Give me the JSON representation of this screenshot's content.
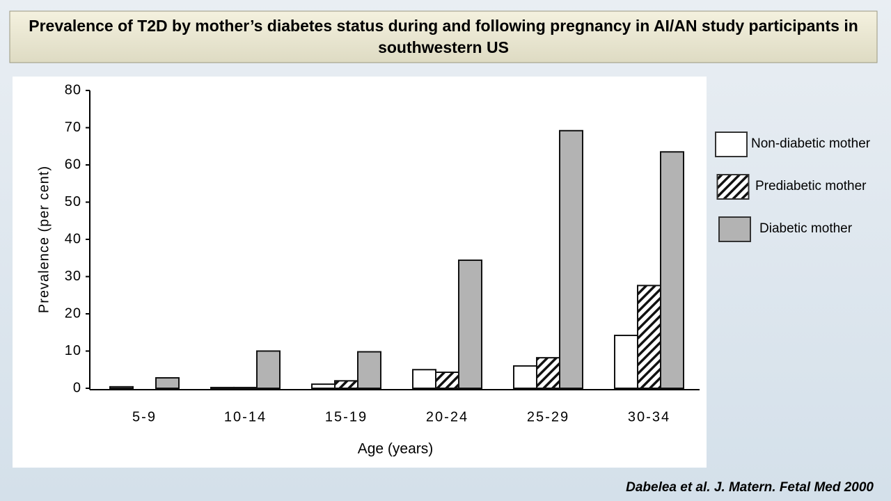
{
  "chart_data": {
    "type": "bar",
    "title": "Prevalence of T2D by mother’s diabetes status during and following pregnancy in AI/AN study participants in southwestern US",
    "ylabel": "Prevalence (per cent)",
    "xlabel": "Age (years)",
    "categories": [
      "5-9",
      "10-14",
      "15-19",
      "20-24",
      "25-29",
      "30-34"
    ],
    "series": [
      {
        "name": "Non-diabetic mother",
        "color": "#ffffff",
        "values": [
          0.4,
          0.2,
          1.1,
          5,
          6,
          14.2
        ]
      },
      {
        "name": "Prediabetic mother",
        "color": "#ffffff",
        "pattern": "hatch",
        "values": [
          0,
          0.2,
          2,
          4.3,
          8.2,
          27.6
        ]
      },
      {
        "name": "Diabetic mother",
        "color": "#b3b3b3",
        "values": [
          2.8,
          10,
          9.8,
          34.4,
          69.2,
          63.5
        ]
      }
    ],
    "ylim": [
      0,
      80
    ],
    "yticks": [
      0,
      10,
      20,
      30,
      40,
      50,
      60,
      70,
      80
    ],
    "source": "Dabelea et al. J. Matern. Fetal Med 2000"
  }
}
